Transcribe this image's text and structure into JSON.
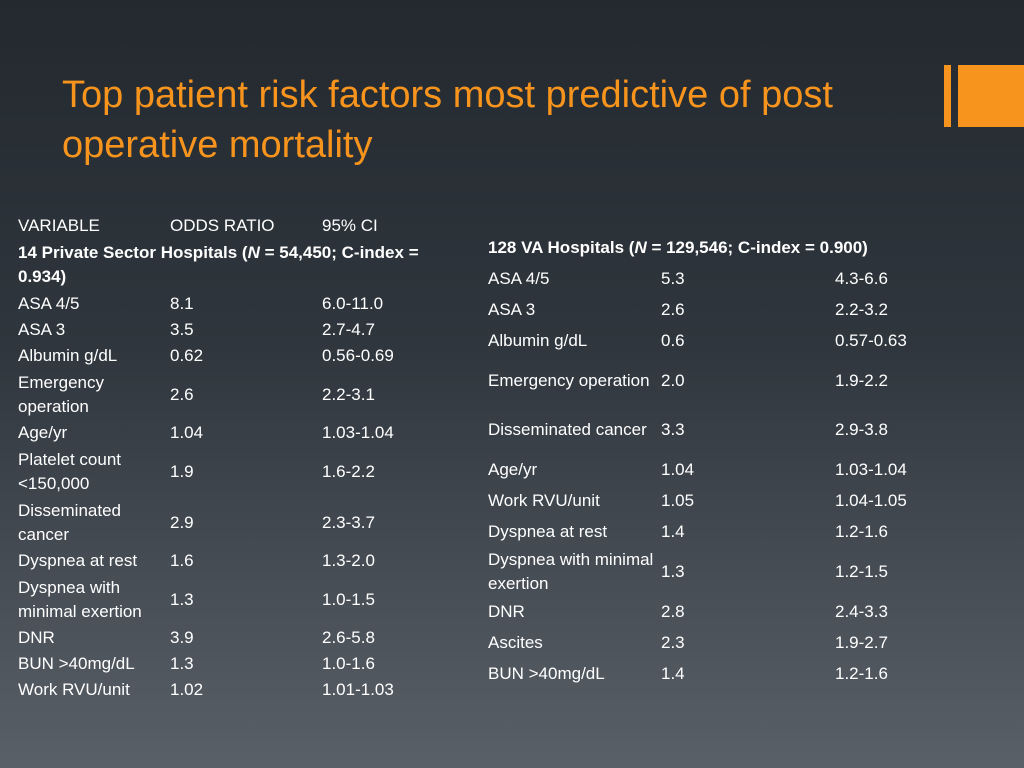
{
  "slide": {
    "title": "Top patient risk factors most predictive of post operative mortality",
    "accent_color": "#f7941d"
  },
  "left_table": {
    "headers": [
      "VARIABLE",
      "ODDS RATIO",
      "95% CI"
    ],
    "group_pre": "14 Private Sector Hospitals (",
    "group_italic": "N",
    "group_post": " = 54,450; C-index = 0.934)",
    "rows": [
      [
        "ASA 4/5",
        "8.1",
        "6.0-11.0"
      ],
      [
        "ASA 3",
        "3.5",
        "2.7-4.7"
      ],
      [
        "Albumin g/dL",
        "0.62",
        "0.56-0.69"
      ],
      [
        "Emergency operation",
        "2.6",
        "2.2-3.1"
      ],
      [
        "Age/yr",
        "1.04",
        "1.03-1.04"
      ],
      [
        "Platelet count <150,000",
        "1.9",
        "1.6-2.2"
      ],
      [
        "Disseminated cancer",
        "2.9",
        "2.3-3.7"
      ],
      [
        "Dyspnea at rest",
        "1.6",
        "1.3-2.0"
      ],
      [
        "Dyspnea with minimal exertion",
        "1.3",
        "1.0-1.5"
      ],
      [
        "DNR",
        "3.9",
        "2.6-5.8"
      ],
      [
        "BUN >40mg/dL",
        "1.3",
        "1.0-1.6"
      ],
      [
        "Work RVU/unit",
        "1.02",
        "1.01-1.03"
      ]
    ]
  },
  "right_table": {
    "group_pre": "128 VA Hospitals (",
    "group_italic": "N",
    "group_post": " = 129,546; C-index = 0.900)",
    "rows": [
      [
        "ASA 4/5",
        "5.3",
        "4.3-6.6"
      ],
      [
        "ASA 3",
        "2.6",
        "2.2-3.2"
      ],
      [
        "Albumin g/dL",
        "0.6",
        "0.57-0.63"
      ],
      [
        "Emergency operation",
        "2.0",
        "1.9-2.2"
      ],
      [
        "Disseminated cancer",
        "3.3",
        "2.9-3.8"
      ],
      [
        "Age/yr",
        "1.04",
        "1.03-1.04"
      ],
      [
        "Work RVU/unit",
        "1.05",
        "1.04-1.05"
      ],
      [
        "Dyspnea at rest",
        "1.4",
        "1.2-1.6"
      ],
      [
        "Dyspnea with minimal exertion",
        "1.3",
        "1.2-1.5"
      ],
      [
        "DNR",
        "2.8",
        "2.4-3.3"
      ],
      [
        "Ascites",
        "2.3",
        "1.9-2.7"
      ],
      [
        "BUN >40mg/dL",
        "1.4",
        "1.2-1.6"
      ]
    ]
  }
}
